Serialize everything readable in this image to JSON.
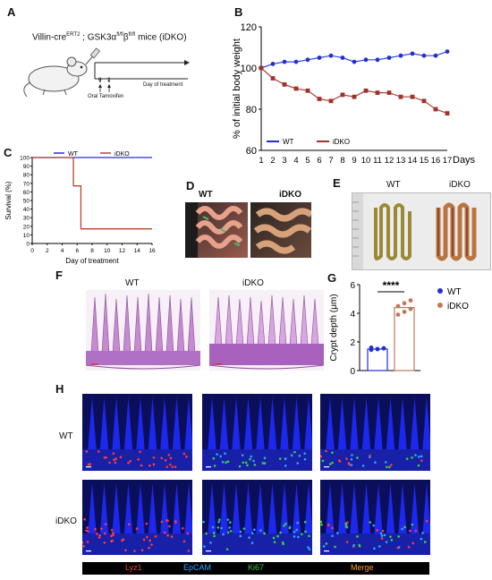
{
  "panels": {
    "a": "A",
    "b": "B",
    "c": "C",
    "d": "D",
    "e": "E",
    "f": "F",
    "g": "G",
    "h": "H"
  },
  "panel_a": {
    "title_prefix": "Villin-cre",
    "title_sup1": "ERT2",
    "title_mid": " ; GSK3α",
    "title_sup2": "fl/fl",
    "title_beta": "β",
    "title_sup3": "fl/fl",
    "title_suffix": " mice (iDKO)",
    "tick0": "0",
    "tick2": "2",
    "oral": "Oral Tamoxifen",
    "axis": "Day of treatment"
  },
  "panel_d": {
    "wt": "WT",
    "ko": "iDKO"
  },
  "panel_e": {
    "wt": "WT",
    "ko": "iDKO"
  },
  "panel_f": {
    "wt": "WT",
    "ko": "iDKO"
  },
  "panel_h": {
    "wt": "WT",
    "ko": "iDKO",
    "stains": [
      "Lyz1",
      "EpCAM",
      "Ki67",
      "Merge"
    ],
    "stain_colors": [
      "#ff3b30",
      "#2aa7ff",
      "#38c738",
      "#ff9f1a"
    ]
  },
  "chart_data": [
    {
      "type": "line",
      "panel": "B",
      "ylabel": "% of initial body weight",
      "xlabel": "Days",
      "x": [
        1,
        2,
        3,
        4,
        5,
        6,
        7,
        8,
        9,
        10,
        11,
        12,
        13,
        14,
        15,
        16,
        17
      ],
      "ylim": [
        60,
        120
      ],
      "yticks": [
        60,
        80,
        100,
        120
      ],
      "series": [
        {
          "name": "WT",
          "color": "#1f2fd6",
          "x": [
            1,
            2,
            3,
            4,
            5,
            6,
            7,
            8,
            9,
            10,
            11,
            12,
            13,
            14,
            15,
            16,
            17
          ],
          "values": [
            100,
            102,
            103,
            103,
            104,
            105,
            106,
            105,
            103,
            104,
            104,
            105,
            106,
            107,
            106,
            106,
            108
          ]
        },
        {
          "name": "iDKO",
          "color": "#a0322a",
          "x": [
            1,
            2,
            3,
            4,
            5,
            6,
            7,
            8,
            9,
            10,
            11,
            12,
            13,
            14,
            15,
            16,
            17
          ],
          "values": [
            100,
            95,
            92,
            90,
            89,
            85,
            84,
            87,
            86,
            89,
            88,
            88,
            86,
            86,
            84,
            80,
            78
          ]
        }
      ]
    },
    {
      "type": "line",
      "panel": "C",
      "ylabel": "Survival (%)",
      "xlabel": "Day of treatment",
      "xticks": [
        0,
        2,
        4,
        6,
        8,
        10,
        12,
        14,
        16
      ],
      "yticks": [
        0,
        10,
        20,
        30,
        40,
        50,
        60,
        70,
        80,
        90,
        100
      ],
      "xlim": [
        0,
        16
      ],
      "ylim": [
        0,
        100
      ],
      "series": [
        {
          "name": "WT",
          "color": "#1f2fd6",
          "x": [
            0,
            16
          ],
          "values": [
            100,
            100
          ]
        },
        {
          "name": "iDKO",
          "color": "#b0472e",
          "x": [
            0,
            5.5,
            5.5,
            6.5,
            6.5,
            16
          ],
          "values": [
            100,
            100,
            67,
            67,
            17,
            17
          ]
        }
      ]
    },
    {
      "type": "bar",
      "panel": "G",
      "ylabel": "Crypt depth (μm)",
      "categories": [
        "WT",
        "iDKO"
      ],
      "values": [
        1.5,
        4.4
      ],
      "points": [
        [
          1.45,
          1.5,
          1.55,
          1.6,
          1.5,
          1.55
        ],
        [
          3.9,
          4.1,
          4.3,
          4.5,
          4.7,
          4.9
        ]
      ],
      "ylim": [
        0,
        6
      ],
      "yticks": [
        0,
        2,
        4,
        6
      ],
      "significance": "****",
      "series": [
        {
          "name": "WT",
          "color": "#1f2fd6"
        },
        {
          "name": "iDKO",
          "color": "#c2785a"
        }
      ]
    }
  ]
}
